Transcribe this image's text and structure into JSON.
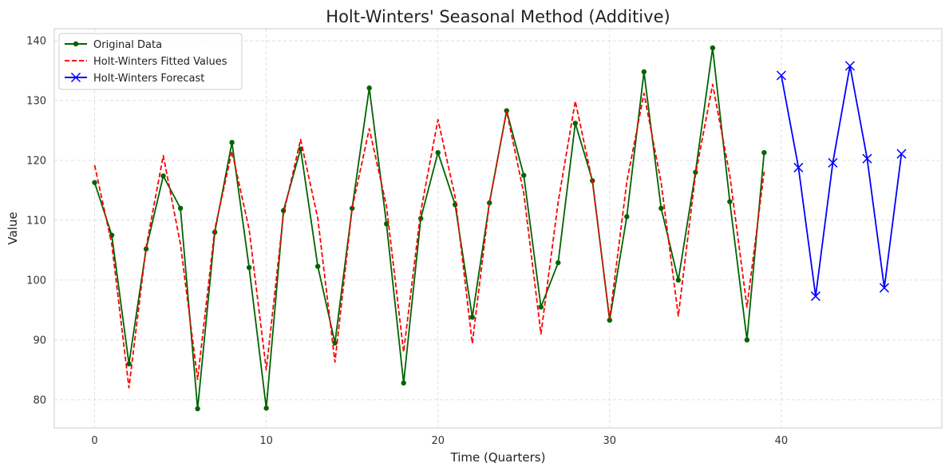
{
  "chart_data": {
    "type": "line",
    "title": "Holt-Winters' Seasonal Method (Additive)",
    "xlabel": "Time (Quarters)",
    "ylabel": "Value",
    "xlim": [
      -2.35,
      49.35
    ],
    "ylim": [
      75.3,
      142
    ],
    "x_ticks": [
      0,
      10,
      20,
      30,
      40
    ],
    "y_ticks": [
      80,
      90,
      100,
      110,
      120,
      130,
      140
    ],
    "grid": true,
    "legend_position": "top-left",
    "series": [
      {
        "name": "Original Data",
        "color": "#006400",
        "style": "solid-circle-markers",
        "x": [
          0,
          1,
          2,
          3,
          4,
          5,
          6,
          7,
          8,
          9,
          10,
          11,
          12,
          13,
          14,
          15,
          16,
          17,
          18,
          19,
          20,
          21,
          22,
          23,
          24,
          25,
          26,
          27,
          28,
          29,
          30,
          31,
          32,
          33,
          34,
          35,
          36,
          37,
          38,
          39
        ],
        "values": [
          116.3,
          107.5,
          86.0,
          105.2,
          117.4,
          112.0,
          78.5,
          108.0,
          123.0,
          102.1,
          78.6,
          111.6,
          121.9,
          102.3,
          89.5,
          112.0,
          132.1,
          109.4,
          82.8,
          110.3,
          121.3,
          112.6,
          93.8,
          112.9,
          128.3,
          117.5,
          95.5,
          102.9,
          126.2,
          116.6,
          93.3,
          110.6,
          134.8,
          112.0,
          100.0,
          118.0,
          138.8,
          113.1,
          90.0,
          121.3
        ]
      },
      {
        "name": "Holt-Winters Fitted Values",
        "color": "#ff0000",
        "style": "dashed",
        "x": [
          0,
          1,
          2,
          3,
          4,
          5,
          6,
          7,
          8,
          9,
          10,
          11,
          12,
          13,
          14,
          15,
          16,
          17,
          18,
          19,
          20,
          21,
          22,
          23,
          24,
          25,
          26,
          27,
          28,
          29,
          30,
          31,
          32,
          33,
          34,
          35,
          36,
          37,
          38,
          39
        ],
        "values": [
          119.2,
          106.0,
          82.0,
          105.5,
          120.8,
          106.0,
          83.4,
          108.5,
          121.5,
          108.5,
          85.0,
          111.0,
          123.5,
          110.3,
          86.3,
          112.0,
          125.3,
          112.4,
          88.0,
          111.5,
          126.8,
          113.9,
          89.4,
          113.0,
          128.2,
          114.5,
          91.0,
          113.0,
          129.9,
          116.4,
          93.5,
          116.4,
          131.2,
          116.3,
          94.0,
          117.6,
          132.7,
          117.5,
          95.5,
          118.1
        ]
      },
      {
        "name": "Holt-Winters Forecast",
        "color": "#0000ff",
        "style": "solid-x-markers",
        "x": [
          40,
          41,
          42,
          43,
          44,
          45,
          46,
          47
        ],
        "values": [
          134.2,
          118.8,
          97.3,
          119.6,
          135.8,
          120.3,
          98.7,
          121.1
        ]
      }
    ]
  }
}
